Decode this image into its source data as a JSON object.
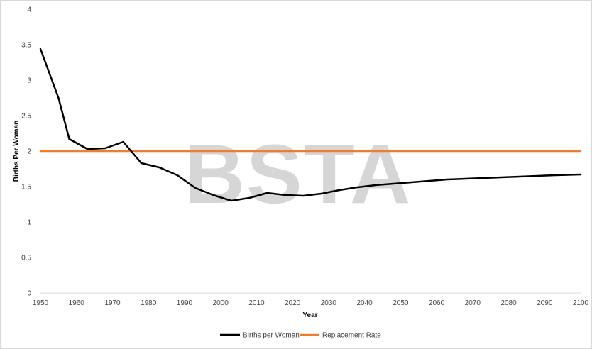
{
  "chart_data": {
    "type": "line",
    "title": "",
    "xlabel": "Year",
    "ylabel": "Births Per Woman",
    "xlim": [
      1950,
      2100
    ],
    "ylim": [
      0,
      4
    ],
    "x_ticks": [
      "1950",
      "1960",
      "1970",
      "1980",
      "1990",
      "2000",
      "2010",
      "2020",
      "2030",
      "2040",
      "2050",
      "2060",
      "2070",
      "2080",
      "2090",
      "2100"
    ],
    "y_ticks": [
      "0",
      "0.5",
      "1",
      "1.5",
      "2",
      "2.5",
      "3",
      "3.5",
      "4"
    ],
    "grid": false,
    "legend_position": "bottom",
    "watermark": "BSTA",
    "series": [
      {
        "name": "Births per Woman",
        "color": "#000000",
        "points": [
          [
            1950,
            3.44
          ],
          [
            1955,
            2.75
          ],
          [
            1958,
            2.17
          ],
          [
            1963,
            2.03
          ],
          [
            1968,
            2.04
          ],
          [
            1973,
            2.13
          ],
          [
            1978,
            1.83
          ],
          [
            1983,
            1.77
          ],
          [
            1988,
            1.66
          ],
          [
            1993,
            1.48
          ],
          [
            1998,
            1.38
          ],
          [
            2003,
            1.3
          ],
          [
            2008,
            1.34
          ],
          [
            2013,
            1.41
          ],
          [
            2018,
            1.38
          ],
          [
            2023,
            1.37
          ],
          [
            2028,
            1.4
          ],
          [
            2033,
            1.45
          ],
          [
            2038,
            1.49
          ],
          [
            2043,
            1.52
          ],
          [
            2048,
            1.54
          ],
          [
            2053,
            1.56
          ],
          [
            2058,
            1.58
          ],
          [
            2063,
            1.6
          ],
          [
            2068,
            1.61
          ],
          [
            2073,
            1.62
          ],
          [
            2078,
            1.63
          ],
          [
            2083,
            1.64
          ],
          [
            2088,
            1.65
          ],
          [
            2093,
            1.66
          ],
          [
            2100,
            1.67
          ]
        ]
      },
      {
        "name": "Replacement Rate",
        "color": "#ed7d31",
        "points": [
          [
            1950,
            2.0
          ],
          [
            2100,
            2.0
          ]
        ]
      }
    ]
  }
}
